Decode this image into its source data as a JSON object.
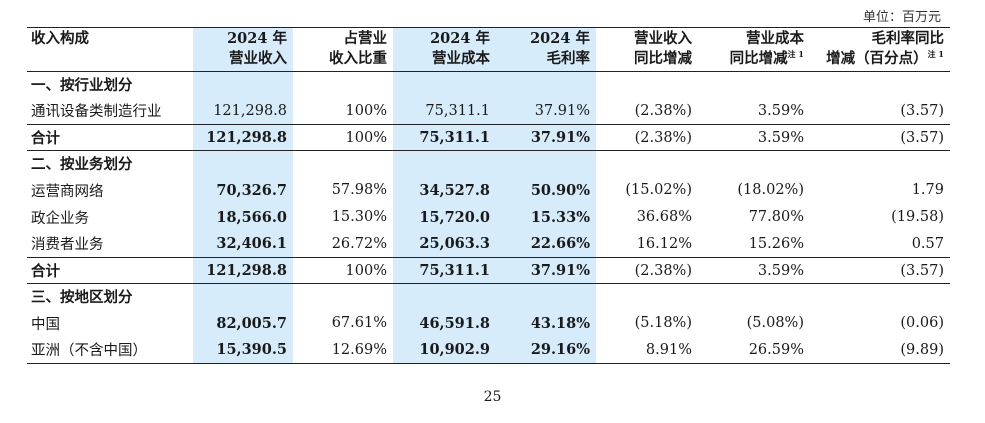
{
  "unit_label": "单位：百万元",
  "headers": {
    "c0": [
      "收入构成"
    ],
    "c1": [
      "2024 年",
      "营业收入"
    ],
    "c2": [
      "占营业",
      "收入比重"
    ],
    "c3": [
      "2024 年",
      "营业成本"
    ],
    "c4": [
      "2024 年",
      "毛利率"
    ],
    "c5": [
      "营业收入",
      "同比增减"
    ],
    "c6": [
      "营业成本",
      "同比增减"
    ],
    "c6_note": "注 1",
    "c7": [
      "毛利率同比",
      "增减（百分点）"
    ],
    "c7_note": "注 1"
  },
  "sections": [
    {
      "title": "一、按行业划分",
      "rows": [
        [
          "通讯设备类制造行业",
          "121,298.8",
          "100%",
          "75,311.1",
          "37.91%",
          "(2.38%)",
          "3.59%",
          "(3.57)"
        ]
      ],
      "total": [
        "合计",
        "121,298.8",
        "100%",
        "75,311.1",
        "37.91%",
        "(2.38%)",
        "3.59%",
        "(3.57)"
      ]
    },
    {
      "title": "二、按业务划分",
      "rows": [
        [
          "运营商网络",
          "70,326.7",
          "57.98%",
          "34,527.8",
          "50.90%",
          "(15.02%)",
          "(18.02%)",
          "1.79"
        ],
        [
          "政企业务",
          "18,566.0",
          "15.30%",
          "15,720.0",
          "15.33%",
          "36.68%",
          "77.80%",
          "(19.58)"
        ],
        [
          "消费者业务",
          "32,406.1",
          "26.72%",
          "25,063.3",
          "22.66%",
          "16.12%",
          "15.26%",
          "0.57"
        ]
      ],
      "total": [
        "合计",
        "121,298.8",
        "100%",
        "75,311.1",
        "37.91%",
        "(2.38%)",
        "3.59%",
        "(3.57)"
      ]
    },
    {
      "title": "三、按地区划分",
      "rows": [
        [
          "中国",
          "82,005.7",
          "67.61%",
          "46,591.8",
          "43.18%",
          "(5.18%)",
          "(5.08%)",
          "(0.06)"
        ],
        [
          "亚洲（不含中国）",
          "15,390.5",
          "12.69%",
          "10,902.9",
          "29.16%",
          "8.91%",
          "26.59%",
          "(9.89)"
        ]
      ]
    }
  ],
  "page_number": "25",
  "colors": {
    "highlight": "#d6ecfb",
    "rule": "#222222"
  }
}
